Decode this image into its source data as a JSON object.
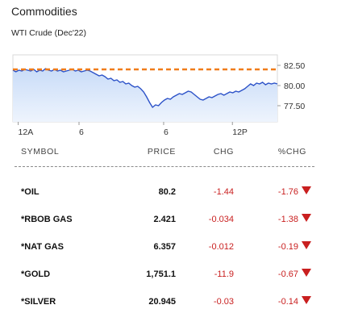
{
  "widget": {
    "title": "Commodities",
    "subtitle": "WTI Crude (Dec'22)"
  },
  "chart_data": {
    "type": "area",
    "x_ticks": [
      "12A",
      "6",
      "6",
      "12P"
    ],
    "y_ticks": [
      "82.50",
      "80.00",
      "77.50"
    ],
    "ylim": [
      75.5,
      83.8
    ],
    "reference_line": {
      "value": 82.0,
      "style": "dashed",
      "color": "#f07c1a"
    },
    "series": [
      {
        "values": [
          81.9,
          81.7,
          81.9,
          81.8,
          82.0,
          81.9,
          81.8,
          82.0,
          81.7,
          81.9,
          81.8,
          82.1,
          81.9,
          81.8,
          82.0,
          81.8,
          81.9,
          81.7,
          81.8,
          81.9,
          82.0,
          81.8,
          81.9,
          81.7,
          81.8,
          81.9,
          81.8,
          81.6,
          81.4,
          81.2,
          81.3,
          81.1,
          80.8,
          80.9,
          80.6,
          80.7,
          80.4,
          80.5,
          80.2,
          80.3,
          80.0,
          79.8,
          79.9,
          79.6,
          79.2,
          78.6,
          77.9,
          77.3,
          77.6,
          77.5,
          77.9,
          78.2,
          78.4,
          78.3,
          78.6,
          78.8,
          79.0,
          78.9,
          79.1,
          79.3,
          79.2,
          78.9,
          78.6,
          78.3,
          78.2,
          78.4,
          78.6,
          78.5,
          78.7,
          78.9,
          79.0,
          78.8,
          79.0,
          79.2,
          79.1,
          79.3,
          79.2,
          79.4,
          79.6,
          79.9,
          80.2,
          80.0,
          80.3,
          80.2,
          80.4,
          80.1,
          80.3,
          80.2,
          80.3,
          80.2
        ]
      }
    ],
    "colors": {
      "line": "#2c52c8",
      "fill_top": "#c9dcf8",
      "fill_bottom": "#eef4fd"
    }
  },
  "table": {
    "headers": {
      "symbol": "SYMBOL",
      "price": "PRICE",
      "chg": "CHG",
      "pchg": "%CHG"
    },
    "rows": [
      {
        "symbol": "*OIL",
        "price": "80.2",
        "chg": "-1.44",
        "pchg": "-1.76",
        "direction": "down"
      },
      {
        "symbol": "*RBOB GAS",
        "price": "2.421",
        "chg": "-0.034",
        "pchg": "-1.38",
        "direction": "down"
      },
      {
        "symbol": "*NAT GAS",
        "price": "6.357",
        "chg": "-0.012",
        "pchg": "-0.19",
        "direction": "down"
      },
      {
        "symbol": "*GOLD",
        "price": "1,751.1",
        "chg": "-11.9",
        "pchg": "-0.67",
        "direction": "down"
      },
      {
        "symbol": "*SILVER",
        "price": "20.945",
        "chg": "-0.03",
        "pchg": "-0.14",
        "direction": "down"
      }
    ]
  },
  "colors": {
    "negative": "#c91f1f"
  }
}
